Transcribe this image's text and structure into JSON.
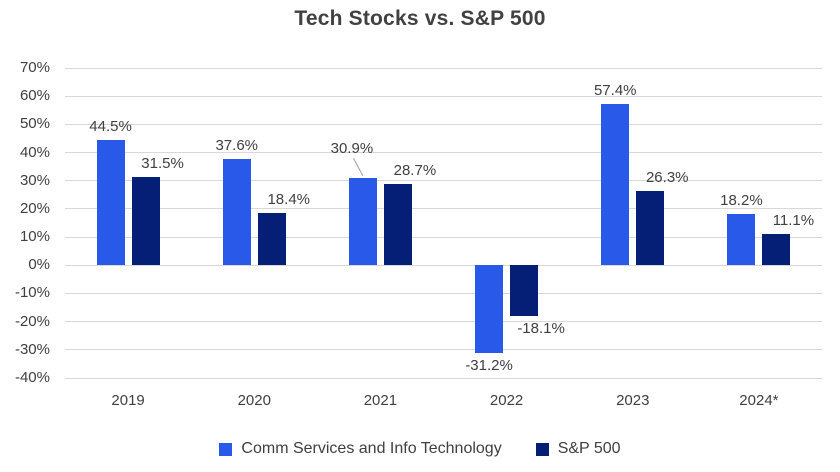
{
  "chart_data": {
    "type": "bar",
    "title": "Tech Stocks vs. S&P 500",
    "categories": [
      "2019",
      "2020",
      "2021",
      "2022",
      "2023",
      "2024*"
    ],
    "series": [
      {
        "name": "Comm Services and Info Technology",
        "color": "#2859E8",
        "values": [
          44.5,
          37.6,
          30.9,
          -31.2,
          57.4,
          18.2
        ],
        "labels": [
          "44.5%",
          "37.6%",
          "30.9%",
          "-31.2%",
          "57.4%",
          "18.2%"
        ]
      },
      {
        "name": "S&P 500",
        "color": "#041F75",
        "values": [
          31.5,
          18.4,
          28.7,
          -18.1,
          26.3,
          11.1
        ],
        "labels": [
          "31.5%",
          "18.4%",
          "28.7%",
          "-18.1%",
          "26.3%",
          "11.1%"
        ]
      }
    ],
    "yticks": [
      "70%",
      "60%",
      "50%",
      "40%",
      "30%",
      "20%",
      "10%",
      "0%",
      "-10%",
      "-20%",
      "-30%",
      "-40%"
    ],
    "ylim": [
      -40,
      70
    ],
    "grid": true,
    "data_labels": true,
    "legend_position": "bottom",
    "annotations": {
      "callout_leader_line": {
        "series_index": 0,
        "category_index": 2
      }
    }
  },
  "colors": {
    "title_text": "#414042",
    "axis_text": "#404040",
    "label_text": "#404040",
    "gridline": "#D8D8D8",
    "leader_line": "#9E9E9E",
    "background": "#FFFFFF"
  }
}
